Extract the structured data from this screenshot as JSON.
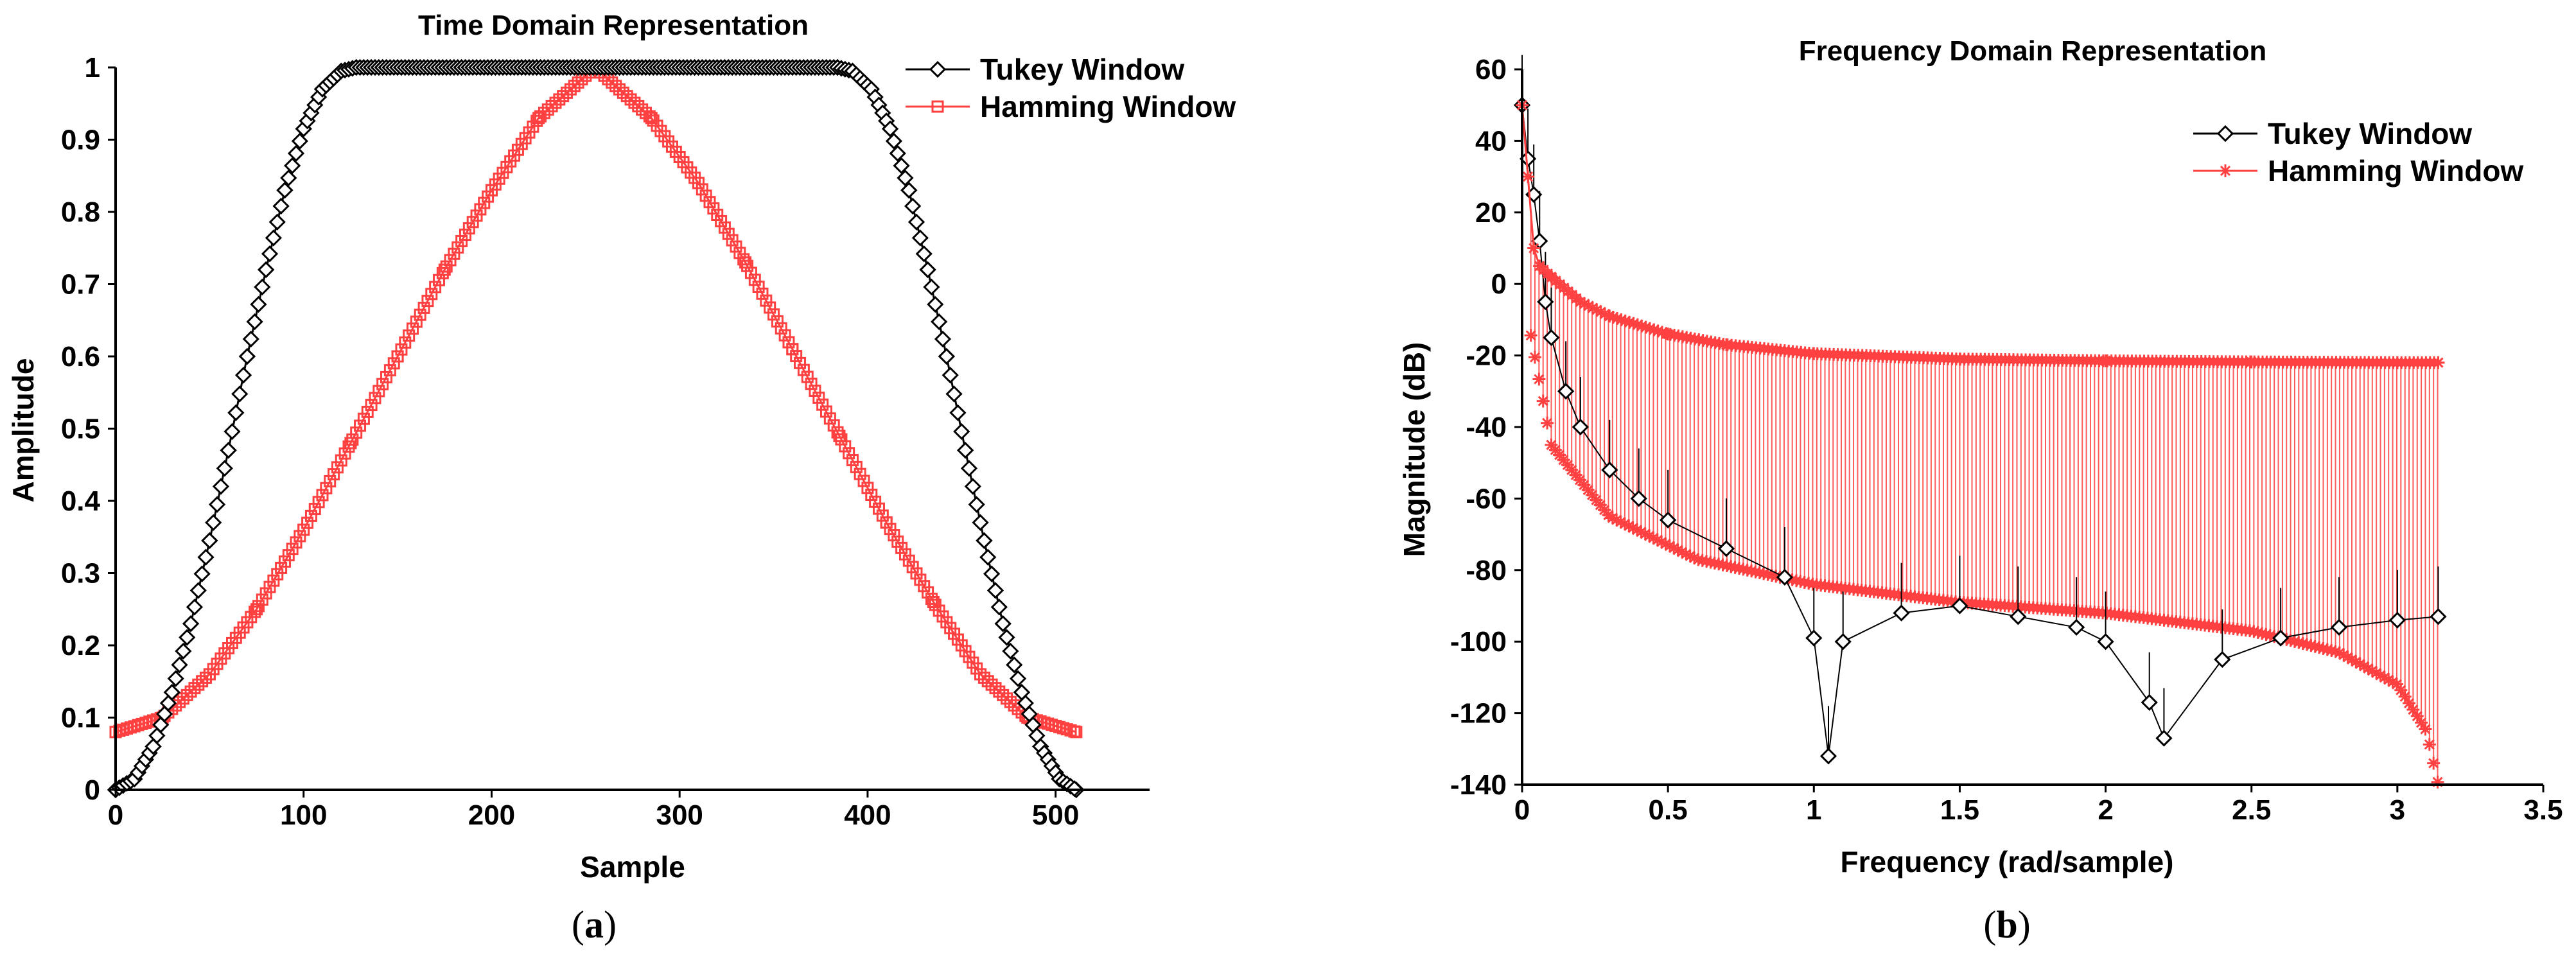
{
  "chart_data": [
    {
      "type": "line",
      "title": "Time Domain Representation",
      "xlabel": "Sample",
      "ylabel": "Amplitude",
      "xlim": [
        0,
        550
      ],
      "ylim": [
        0,
        1
      ],
      "xticks": [
        "0",
        "100",
        "200",
        "300",
        "400",
        "500"
      ],
      "yticks": [
        "0",
        "0.1",
        "0.2",
        "0.3",
        "0.4",
        "0.5",
        "0.6",
        "0.7",
        "0.8",
        "0.9",
        "1"
      ],
      "legend_position": "top-right",
      "caption_letter": "a",
      "series": [
        {
          "name": "Tukey Window",
          "color": "#000000",
          "marker": "diamond",
          "x": [
            0,
            10,
            20,
            30,
            40,
            50,
            60,
            70,
            80,
            90,
            100,
            110,
            120,
            128,
            200,
            300,
            384,
            392,
            402,
            412,
            422,
            432,
            442,
            452,
            462,
            472,
            482,
            492,
            502,
            511
          ],
          "values": [
            0,
            0.015,
            0.06,
            0.135,
            0.23,
            0.345,
            0.47,
            0.6,
            0.72,
            0.83,
            0.915,
            0.97,
            0.995,
            1,
            1,
            1,
            1,
            0.995,
            0.97,
            0.915,
            0.83,
            0.72,
            0.6,
            0.47,
            0.345,
            0.23,
            0.135,
            0.06,
            0.015,
            0
          ]
        },
        {
          "name": "Hamming Window",
          "color": "#ff4040",
          "marker": "square",
          "x": [
            0,
            25,
            50,
            75,
            100,
            125,
            150,
            175,
            200,
            225,
            255,
            285,
            310,
            335,
            360,
            385,
            410,
            435,
            460,
            485,
            511
          ],
          "values": [
            0.08,
            0.1,
            0.16,
            0.25,
            0.36,
            0.48,
            0.6,
            0.72,
            0.83,
            0.93,
            1.0,
            0.93,
            0.84,
            0.73,
            0.61,
            0.49,
            0.37,
            0.26,
            0.16,
            0.1,
            0.08
          ]
        }
      ]
    },
    {
      "type": "line",
      "title": "Frequency Domain Representation",
      "xlabel": "Frequency (rad/sample)",
      "ylabel": "Magnitude (dB)",
      "xlim": [
        0,
        3.5
      ],
      "ylim": [
        -140,
        60
      ],
      "xticks": [
        "0",
        "0.5",
        "1",
        "1.5",
        "2",
        "2.5",
        "3",
        "3.5"
      ],
      "yticks": [
        "-140",
        "-120",
        "-100",
        "-80",
        "-60",
        "-40",
        "-20",
        "0",
        "20",
        "40",
        "60"
      ],
      "legend_position": "top-right",
      "caption_letter": "b",
      "series": [
        {
          "name": "Tukey Window",
          "color": "#000000",
          "marker": "diamond",
          "x": [
            0.0,
            0.02,
            0.04,
            0.06,
            0.08,
            0.1,
            0.15,
            0.2,
            0.3,
            0.4,
            0.5,
            0.7,
            0.9,
            1.0,
            1.05,
            1.1,
            1.3,
            1.5,
            1.7,
            1.9,
            2.0,
            2.15,
            2.2,
            2.4,
            2.6,
            2.8,
            3.0,
            3.14
          ],
          "values": [
            50,
            35,
            25,
            12,
            -5,
            -15,
            -30,
            -40,
            -52,
            -60,
            -66,
            -74,
            -82,
            -99,
            -132,
            -100,
            -92,
            -90,
            -93,
            -96,
            -100,
            -117,
            -127,
            -105,
            -99,
            -96,
            -94,
            -93
          ]
        },
        {
          "name": "Hamming Window",
          "color": "#ff4040",
          "marker": "asterisk",
          "x": [
            0.0,
            0.02,
            0.04,
            0.06,
            0.1,
            0.2,
            0.3,
            0.5,
            0.7,
            1.0,
            1.5,
            2.0,
            2.5,
            3.0,
            3.14
          ],
          "values": [
            50,
            30,
            10,
            5,
            2,
            -5,
            -9,
            -14,
            -17,
            -19.5,
            -21,
            -21.5,
            -21.8,
            -22,
            -22
          ]
        }
      ]
    }
  ]
}
